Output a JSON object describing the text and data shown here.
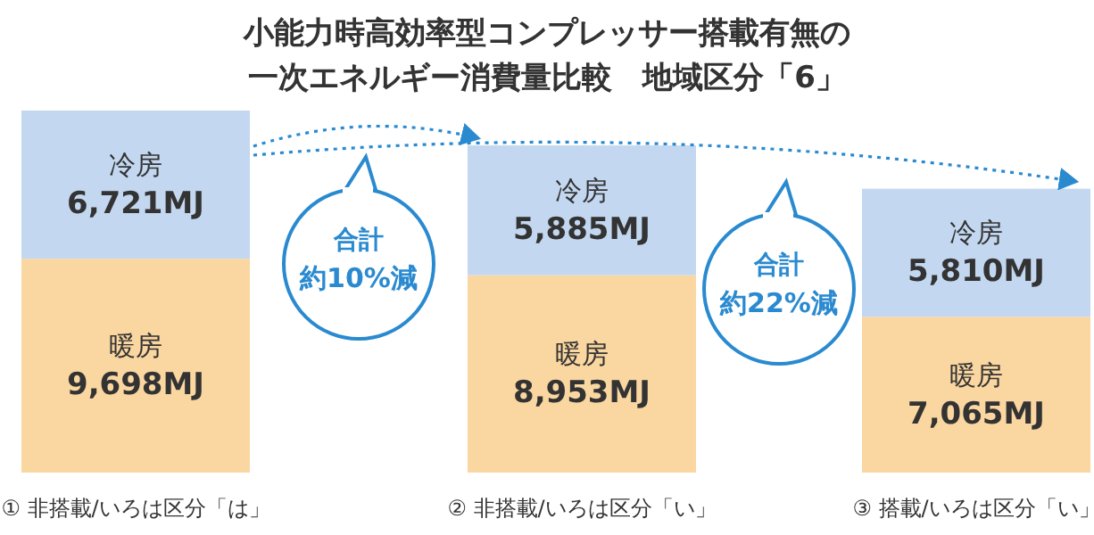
{
  "chart_data": {
    "type": "bar",
    "stacked": true,
    "title": "小能力時高効率型コンプレッサー搭載有無の",
    "subtitle": "一次エネルギー消費量比較　地域区分「6」",
    "categories": [
      "① 非搭載/いろは区分「は」",
      "② 非搭載/いろは区分「い」",
      "③ 搭載/いろは区分「い」"
    ],
    "series": [
      {
        "name": "暖房",
        "color": "#fad6a0",
        "values": [
          9698,
          8953,
          7065
        ],
        "value_labels": [
          "9,698MJ",
          "8,953MJ",
          "7,065MJ"
        ]
      },
      {
        "name": "冷房",
        "color": "#c3d8f0",
        "values": [
          6721,
          5885,
          5810
        ],
        "value_labels": [
          "6,721MJ",
          "5,885MJ",
          "5,810MJ"
        ]
      }
    ],
    "annotations": [
      "合計",
      "約10%減",
      "合計",
      "約22%減"
    ]
  }
}
